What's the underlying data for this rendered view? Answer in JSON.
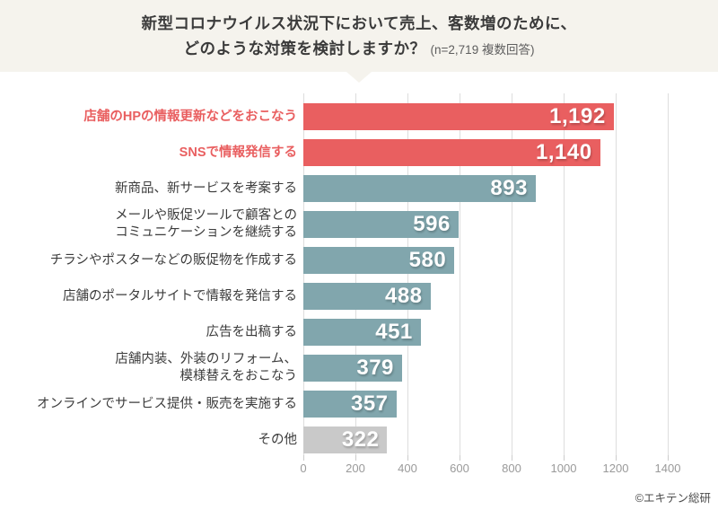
{
  "header": {
    "title_line1": "新型コロナウイルス状況下において売上、客数増のために、",
    "title_line2": "どのような対策を検討しますか？",
    "title_note": "(n=2,719 複数回答)"
  },
  "chart_data": {
    "type": "bar",
    "orientation": "horizontal",
    "title": "新型コロナウイルス状況下において売上、客数増のために、どのような対策を検討しますか？",
    "sample_note": "n=2,719 複数回答",
    "categories": [
      "店舗のHPの情報更新などをおこなう",
      "SNSで情報発信する",
      "新商品、新サービスを考案する",
      "メールや販促ツールで顧客との\nコミュニケーションを継続する",
      "チラシやポスターなどの販促物を作成する",
      "店舗のポータルサイトで情報を発信する",
      "広告を出稿する",
      "店舗内装、外装のリフォーム、\n模様替えをおこなう",
      "オンラインでサービス提供・販売を実施する",
      "その他"
    ],
    "values": [
      1192,
      1140,
      893,
      596,
      580,
      488,
      451,
      379,
      357,
      322
    ],
    "value_labels": [
      "1,192",
      "1,140",
      "893",
      "596",
      "580",
      "488",
      "451",
      "379",
      "357",
      "322"
    ],
    "bar_color_keys": [
      "red",
      "red",
      "teal",
      "teal",
      "teal",
      "teal",
      "teal",
      "teal",
      "teal",
      "gray"
    ],
    "accent_label_rows": [
      0,
      1
    ],
    "xlim": [
      0,
      1400
    ],
    "xticks": [
      0,
      200,
      400,
      600,
      800,
      1000,
      1200,
      1400
    ],
    "grid": true,
    "legend": null
  },
  "colors": {
    "header_bg": "#f5f3ed",
    "red": "#e95f60",
    "teal": "#81a6ad",
    "gray": "#c9c9c9",
    "grid_line": "#dddddd",
    "tick_label": "#9a9a9a",
    "title_text": "#3b3b3b",
    "note_text": "#5e5e5e",
    "label_text": "#3c3c3c",
    "value_text": "#ffffff"
  },
  "footer": {
    "credit": "©エキテン総研"
  }
}
